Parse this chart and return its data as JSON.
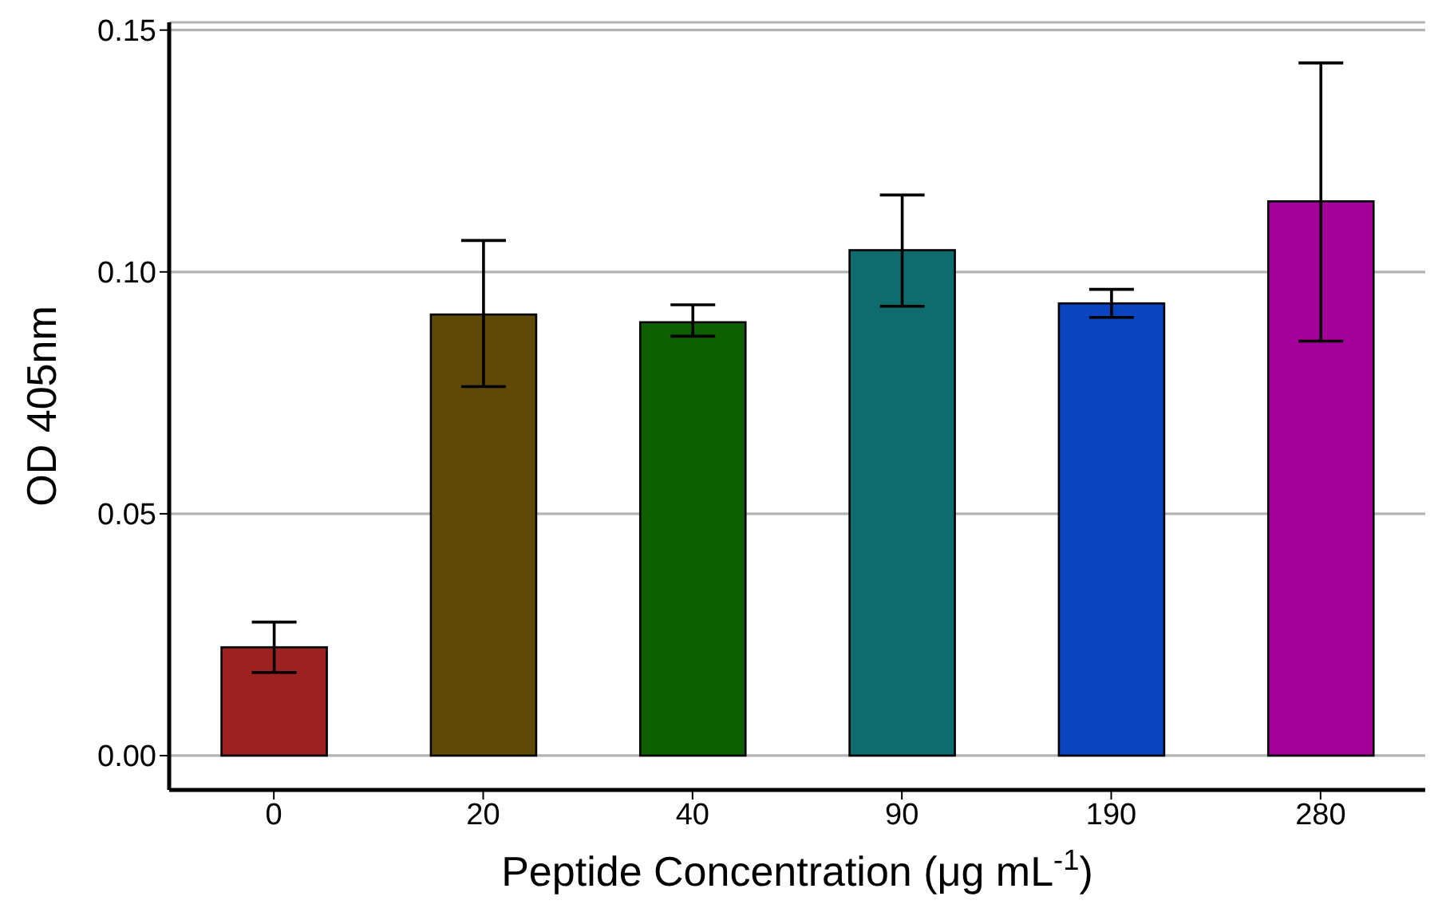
{
  "chart_data": {
    "type": "bar",
    "xlabel": "Peptide Concentration (μg mL$^{-1}$)",
    "ylabel": "OD 405nm",
    "categories": [
      "0",
      "20",
      "40",
      "90",
      "190",
      "280"
    ],
    "values": [
      0.0224,
      0.0912,
      0.0896,
      0.1045,
      0.0935,
      0.1146
    ],
    "colors": [
      "#9b2220",
      "#5e4a05",
      "#0e5f00",
      "#0e6b6e",
      "#0a44c0",
      "#a3009a"
    ],
    "errors": [
      [
        0.0172,
        0.0276
      ],
      [
        0.0763,
        0.1065
      ],
      [
        0.0867,
        0.0932
      ],
      [
        0.0929,
        0.1159
      ],
      [
        0.0906,
        0.0964
      ],
      [
        0.0857,
        0.1432
      ]
    ],
    "ylim": [
      -0.0071,
      0.1516
    ],
    "yticks": [
      {
        "value": 0,
        "label": "0.00"
      },
      {
        "value": 0.05,
        "label": "0.05"
      },
      {
        "value": 0.1,
        "label": "0.10"
      },
      {
        "value": 0.15,
        "label": "0.15"
      }
    ],
    "grid": "y"
  }
}
